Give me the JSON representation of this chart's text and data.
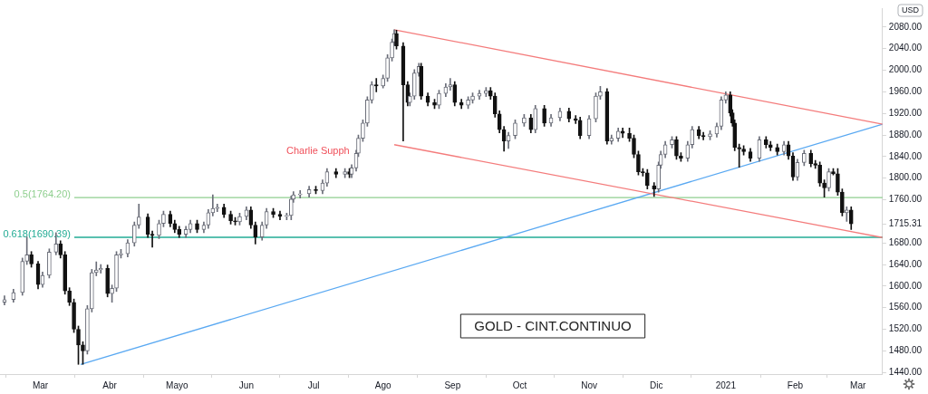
{
  "chart_data": {
    "type": "candlestick",
    "ylabel": "USD",
    "x": [
      "2020-02-14",
      "2020-02-18",
      "2020-02-22",
      "2020-02-24",
      "2020-02-26",
      "2020-02-29",
      "2020-03-02",
      "2020-03-05",
      "2020-03-08",
      "2020-03-10",
      "2020-03-12",
      "2020-03-14",
      "2020-03-16",
      "2020-03-18",
      "2020-03-20",
      "2020-03-22",
      "2020-03-24",
      "2020-03-26",
      "2020-03-28",
      "2020-03-31",
      "2020-04-02",
      "2020-04-04",
      "2020-04-06",
      "2020-04-09",
      "2020-04-12",
      "2020-04-14",
      "2020-04-18",
      "2020-04-20",
      "2020-04-23",
      "2020-04-25",
      "2020-04-28",
      "2020-04-30",
      "2020-05-02",
      "2020-05-05",
      "2020-05-07",
      "2020-05-10",
      "2020-05-13",
      "2020-05-15",
      "2020-05-17",
      "2020-05-19",
      "2020-05-22",
      "2020-05-25",
      "2020-05-27",
      "2020-05-29",
      "2020-06-01",
      "2020-06-03",
      "2020-06-05",
      "2020-06-08",
      "2020-06-10",
      "2020-06-13",
      "2020-06-16",
      "2020-06-19",
      "2020-06-21",
      "2020-06-22",
      "2020-06-25",
      "2020-06-29",
      "2020-07-02",
      "2020-07-05",
      "2020-07-07",
      "2020-07-11",
      "2020-07-15",
      "2020-07-17",
      "2020-07-18",
      "2020-07-20",
      "2020-07-21",
      "2020-07-23",
      "2020-07-25",
      "2020-07-27",
      "2020-07-29",
      "2020-08-01",
      "2020-08-03",
      "2020-08-05",
      "2020-08-06",
      "2020-08-07",
      "2020-08-10",
      "2020-08-12",
      "2020-08-13",
      "2020-08-15",
      "2020-08-17",
      "2020-08-18",
      "2020-08-21",
      "2020-08-24",
      "2020-08-26",
      "2020-08-29",
      "2020-08-31",
      "2020-09-02",
      "2020-09-05",
      "2020-09-08",
      "2020-09-10",
      "2020-09-13",
      "2020-09-16",
      "2020-09-18",
      "2020-09-20",
      "2020-09-22",
      "2020-09-24",
      "2020-09-26",
      "2020-09-29",
      "2020-10-03",
      "2020-10-06",
      "2020-10-08",
      "2020-10-12",
      "2020-10-15",
      "2020-10-19",
      "2020-10-23",
      "2020-10-26",
      "2020-10-28",
      "2020-11-01",
      "2020-11-04",
      "2020-11-06",
      "2020-11-09",
      "2020-11-11",
      "2020-11-14",
      "2020-11-16",
      "2020-11-19",
      "2020-11-21",
      "2020-11-23",
      "2020-11-25",
      "2020-11-27",
      "2020-11-30",
      "2020-12-02",
      "2020-12-03",
      "2020-12-05",
      "2020-12-08",
      "2020-12-10",
      "2020-12-12",
      "2020-12-15",
      "2020-12-17",
      "2020-12-20",
      "2020-12-22",
      "2020-12-25",
      "2020-12-28",
      "2020-12-30",
      "2021-01-01",
      "2021-01-03",
      "2021-01-04",
      "2021-01-05",
      "2021-01-07",
      "2021-01-09",
      "2021-01-12",
      "2021-01-16",
      "2021-01-19",
      "2021-01-21",
      "2021-01-24",
      "2021-01-27",
      "2021-01-29",
      "2021-01-31",
      "2021-02-02",
      "2021-02-05",
      "2021-02-08",
      "2021-02-10",
      "2021-02-12",
      "2021-02-14",
      "2021-02-16",
      "2021-02-18",
      "2021-02-20",
      "2021-02-22",
      "2021-02-24",
      "2021-02-26"
    ],
    "ohlc": [
      [
        1570,
        1582,
        1565,
        1575
      ],
      [
        1575,
        1594,
        1570,
        1588
      ],
      [
        1588,
        1652,
        1583,
        1646
      ],
      [
        1646,
        1691,
        1640,
        1658
      ],
      [
        1658,
        1664,
        1635,
        1641
      ],
      [
        1641,
        1646,
        1595,
        1603
      ],
      [
        1603,
        1626,
        1598,
        1620
      ],
      [
        1620,
        1669,
        1615,
        1663
      ],
      [
        1663,
        1699,
        1658,
        1678
      ],
      [
        1678,
        1684,
        1652,
        1658
      ],
      [
        1658,
        1664,
        1585,
        1591
      ],
      [
        1591,
        1597,
        1564,
        1570
      ],
      [
        1570,
        1576,
        1514,
        1520
      ],
      [
        1520,
        1526,
        1455,
        1491
      ],
      [
        1491,
        1497,
        1455,
        1480
      ],
      [
        1480,
        1564,
        1474,
        1558
      ],
      [
        1558,
        1631,
        1552,
        1625
      ],
      [
        1625,
        1645,
        1619,
        1630
      ],
      [
        1630,
        1640,
        1624,
        1633
      ],
      [
        1633,
        1639,
        1580,
        1586
      ],
      [
        1586,
        1602,
        1570,
        1596
      ],
      [
        1596,
        1664,
        1590,
        1658
      ],
      [
        1658,
        1668,
        1652,
        1660
      ],
      [
        1660,
        1686,
        1654,
        1680
      ],
      [
        1680,
        1719,
        1674,
        1713
      ],
      [
        1713,
        1752,
        1707,
        1728
      ],
      [
        1728,
        1734,
        1690,
        1696
      ],
      [
        1696,
        1702,
        1672,
        1694
      ],
      [
        1694,
        1722,
        1688,
        1716
      ],
      [
        1716,
        1739,
        1710,
        1733
      ],
      [
        1733,
        1739,
        1710,
        1716
      ],
      [
        1716,
        1722,
        1699,
        1705
      ],
      [
        1705,
        1711,
        1690,
        1696
      ],
      [
        1696,
        1711,
        1690,
        1705
      ],
      [
        1705,
        1722,
        1699,
        1716
      ],
      [
        1716,
        1722,
        1699,
        1705
      ],
      [
        1705,
        1719,
        1699,
        1713
      ],
      [
        1713,
        1742,
        1707,
        1736
      ],
      [
        1736,
        1769,
        1730,
        1744
      ],
      [
        1744,
        1752,
        1738,
        1746
      ],
      [
        1746,
        1752,
        1727,
        1733
      ],
      [
        1733,
        1739,
        1715,
        1721
      ],
      [
        1721,
        1727,
        1713,
        1719
      ],
      [
        1719,
        1735,
        1713,
        1729
      ],
      [
        1729,
        1747,
        1723,
        1741
      ],
      [
        1741,
        1747,
        1707,
        1713
      ],
      [
        1713,
        1719,
        1678,
        1691
      ],
      [
        1691,
        1719,
        1685,
        1713
      ],
      [
        1713,
        1744,
        1707,
        1738
      ],
      [
        1738,
        1744,
        1727,
        1733
      ],
      [
        1733,
        1739,
        1723,
        1729
      ],
      [
        1729,
        1735,
        1723,
        1731
      ],
      [
        1731,
        1767,
        1723,
        1761
      ],
      [
        1761,
        1775,
        1755,
        1769
      ],
      [
        1769,
        1777,
        1763,
        1771
      ],
      [
        1771,
        1785,
        1765,
        1779
      ],
      [
        1779,
        1785,
        1771,
        1777
      ],
      [
        1777,
        1797,
        1771,
        1791
      ],
      [
        1791,
        1818,
        1785,
        1812
      ],
      [
        1812,
        1818,
        1801,
        1807
      ],
      [
        1807,
        1818,
        1801,
        1812
      ],
      [
        1812,
        1818,
        1801,
        1807
      ],
      [
        1807,
        1825,
        1801,
        1819
      ],
      [
        1819,
        1852,
        1813,
        1846
      ],
      [
        1846,
        1880,
        1840,
        1874
      ],
      [
        1874,
        1908,
        1868,
        1902
      ],
      [
        1902,
        1951,
        1896,
        1945
      ],
      [
        1945,
        1979,
        1939,
        1973
      ],
      [
        1973,
        1985,
        1960,
        1971
      ],
      [
        1971,
        1991,
        1967,
        1985
      ],
      [
        1985,
        2029,
        1979,
        2023
      ],
      [
        2023,
        2058,
        2017,
        2052
      ],
      [
        2052,
        2075,
        2046,
        2068
      ],
      [
        2068,
        2074,
        2039,
        2045
      ],
      [
        2045,
        2051,
        1869,
        1973
      ],
      [
        1973,
        1979,
        1934,
        1940
      ],
      [
        1940,
        1958,
        1934,
        1952
      ],
      [
        1952,
        2001,
        1946,
        1995
      ],
      [
        1995,
        2013,
        1989,
        2007
      ],
      [
        2007,
        2013,
        1946,
        1952
      ],
      [
        1952,
        1958,
        1934,
        1940
      ],
      [
        1940,
        1946,
        1929,
        1935
      ],
      [
        1935,
        1963,
        1929,
        1957
      ],
      [
        1957,
        1975,
        1951,
        1969
      ],
      [
        1969,
        1985,
        1963,
        1973
      ],
      [
        1973,
        1979,
        1934,
        1940
      ],
      [
        1940,
        1946,
        1929,
        1935
      ],
      [
        1935,
        1951,
        1929,
        1945
      ],
      [
        1945,
        1958,
        1939,
        1952
      ],
      [
        1952,
        1963,
        1946,
        1957
      ],
      [
        1957,
        1968,
        1951,
        1962
      ],
      [
        1962,
        1968,
        1946,
        1952
      ],
      [
        1952,
        1958,
        1913,
        1919
      ],
      [
        1919,
        1925,
        1884,
        1890
      ],
      [
        1890,
        1896,
        1850,
        1869
      ],
      [
        1869,
        1885,
        1855,
        1879
      ],
      [
        1879,
        1908,
        1873,
        1902
      ],
      [
        1902,
        1918,
        1896,
        1912
      ],
      [
        1912,
        1918,
        1884,
        1890
      ],
      [
        1890,
        1935,
        1884,
        1929
      ],
      [
        1929,
        1935,
        1896,
        1902
      ],
      [
        1902,
        1918,
        1896,
        1912
      ],
      [
        1912,
        1930,
        1906,
        1924
      ],
      [
        1924,
        1930,
        1904,
        1910
      ],
      [
        1910,
        1916,
        1901,
        1907
      ],
      [
        1907,
        1913,
        1873,
        1879
      ],
      [
        1879,
        1916,
        1873,
        1910
      ],
      [
        1910,
        1958,
        1904,
        1952
      ],
      [
        1952,
        1970,
        1946,
        1960
      ],
      [
        1960,
        1966,
        1863,
        1869
      ],
      [
        1869,
        1880,
        1863,
        1874
      ],
      [
        1874,
        1893,
        1868,
        1887
      ],
      [
        1887,
        1893,
        1875,
        1883
      ],
      [
        1883,
        1893,
        1868,
        1874
      ],
      [
        1874,
        1880,
        1838,
        1844
      ],
      [
        1844,
        1850,
        1806,
        1812
      ],
      [
        1812,
        1818,
        1804,
        1810
      ],
      [
        1810,
        1816,
        1780,
        1786
      ],
      [
        1786,
        1792,
        1766,
        1780
      ],
      [
        1780,
        1830,
        1774,
        1824
      ],
      [
        1824,
        1850,
        1818,
        1844
      ],
      [
        1844,
        1868,
        1838,
        1862
      ],
      [
        1862,
        1877,
        1856,
        1871
      ],
      [
        1871,
        1877,
        1835,
        1841
      ],
      [
        1841,
        1847,
        1831,
        1837
      ],
      [
        1837,
        1868,
        1831,
        1862
      ],
      [
        1862,
        1896,
        1856,
        1890
      ],
      [
        1890,
        1896,
        1873,
        1879
      ],
      [
        1879,
        1885,
        1871,
        1877
      ],
      [
        1877,
        1888,
        1871,
        1882
      ],
      [
        1882,
        1902,
        1876,
        1896
      ],
      [
        1896,
        1951,
        1890,
        1945
      ],
      [
        1945,
        1960,
        1939,
        1954
      ],
      [
        1954,
        1960,
        1915,
        1921
      ],
      [
        1921,
        1927,
        1896,
        1902
      ],
      [
        1902,
        1908,
        1851,
        1857
      ],
      [
        1857,
        1863,
        1820,
        1854
      ],
      [
        1854,
        1860,
        1843,
        1849
      ],
      [
        1849,
        1855,
        1831,
        1837
      ],
      [
        1837,
        1877,
        1831,
        1871
      ],
      [
        1871,
        1877,
        1856,
        1862
      ],
      [
        1862,
        1868,
        1851,
        1857
      ],
      [
        1857,
        1863,
        1843,
        1849
      ],
      [
        1849,
        1868,
        1843,
        1862
      ],
      [
        1862,
        1868,
        1835,
        1841
      ],
      [
        1841,
        1847,
        1796,
        1802
      ],
      [
        1802,
        1835,
        1796,
        1829
      ],
      [
        1829,
        1852,
        1823,
        1846
      ],
      [
        1846,
        1852,
        1821,
        1827
      ],
      [
        1827,
        1833,
        1818,
        1824
      ],
      [
        1824,
        1830,
        1785,
        1791
      ],
      [
        1791,
        1797,
        1765,
        1782
      ],
      [
        1782,
        1818,
        1776,
        1812
      ],
      [
        1812,
        1818,
        1806,
        1808
      ],
      [
        1808,
        1818,
        1768,
        1774
      ],
      [
        1774,
        1780,
        1730,
        1736
      ],
      [
        1736,
        1747,
        1720,
        1741
      ],
      [
        1741,
        1747,
        1705,
        1715.31
      ]
    ],
    "series": [
      {
        "type": "line",
        "color": "#f47c7c",
        "x": [
          "2020-08-06",
          "2021-03-12"
        ],
        "values": [
          2075,
          1900
        ]
      },
      {
        "type": "line",
        "color": "#f47c7c",
        "x": [
          "2020-08-06",
          "2021-03-12"
        ],
        "values": [
          1862,
          1690
        ]
      },
      {
        "type": "line",
        "color": "#5aa9f2",
        "x": [
          "2020-03-19",
          "2021-03-12"
        ],
        "values": [
          1455,
          1900
        ]
      }
    ],
    "xlim": [
      "2020-02-12",
      "2021-03-12"
    ],
    "xticks": [
      {
        "value": "2020-03-01",
        "label": "Mar"
      },
      {
        "value": "2020-04-01",
        "label": "Abr"
      },
      {
        "value": "2020-05-01",
        "label": "Mayo"
      },
      {
        "value": "2020-06-01",
        "label": "Jun"
      },
      {
        "value": "2020-07-01",
        "label": "Jul"
      },
      {
        "value": "2020-08-01",
        "label": "Ago"
      },
      {
        "value": "2020-09-01",
        "label": "Sep"
      },
      {
        "value": "2020-10-01",
        "label": "Oct"
      },
      {
        "value": "2020-11-01",
        "label": "Nov"
      },
      {
        "value": "2020-12-01",
        "label": "Dic"
      },
      {
        "value": "2021-01-01",
        "label": "2021"
      },
      {
        "value": "2021-02-01",
        "label": "Feb"
      },
      {
        "value": "2021-03-01",
        "label": "Mar"
      }
    ],
    "ylim": [
      1437,
      2115
    ],
    "yticks": [
      {
        "value": 1440,
        "label": "1440.00"
      },
      {
        "value": 1480,
        "label": "1480.00"
      },
      {
        "value": 1520,
        "label": "1520.00"
      },
      {
        "value": 1560,
        "label": "1560.00"
      },
      {
        "value": 1600,
        "label": "1600.00"
      },
      {
        "value": 1640,
        "label": "1640.00"
      },
      {
        "value": 1680,
        "label": "1680.00"
      },
      {
        "value": 1715.31,
        "label": "1715.31"
      },
      {
        "value": 1760,
        "label": "1760.00"
      },
      {
        "value": 1800,
        "label": "1800.00"
      },
      {
        "value": 1840,
        "label": "1840.00"
      },
      {
        "value": 1880,
        "label": "1880.00"
      },
      {
        "value": 1920,
        "label": "1920.00"
      },
      {
        "value": 1960,
        "label": "1960.00"
      },
      {
        "value": 2000,
        "label": "2000.00"
      },
      {
        "value": 2040,
        "label": "2040.00"
      },
      {
        "value": 2080,
        "label": "2080.00"
      }
    ],
    "ref_lines": [
      {
        "axis": "y",
        "value": 1764.2,
        "label": "0.5(1764.20)",
        "color": "#8fcf8f"
      },
      {
        "axis": "y",
        "value": 1690.39,
        "label": "0.618(1690.39)",
        "color": "#22ab94"
      }
    ],
    "annotations": [
      "Charlie Supph",
      "GOLD - CINT.CONTINUO"
    ],
    "legend": false
  }
}
